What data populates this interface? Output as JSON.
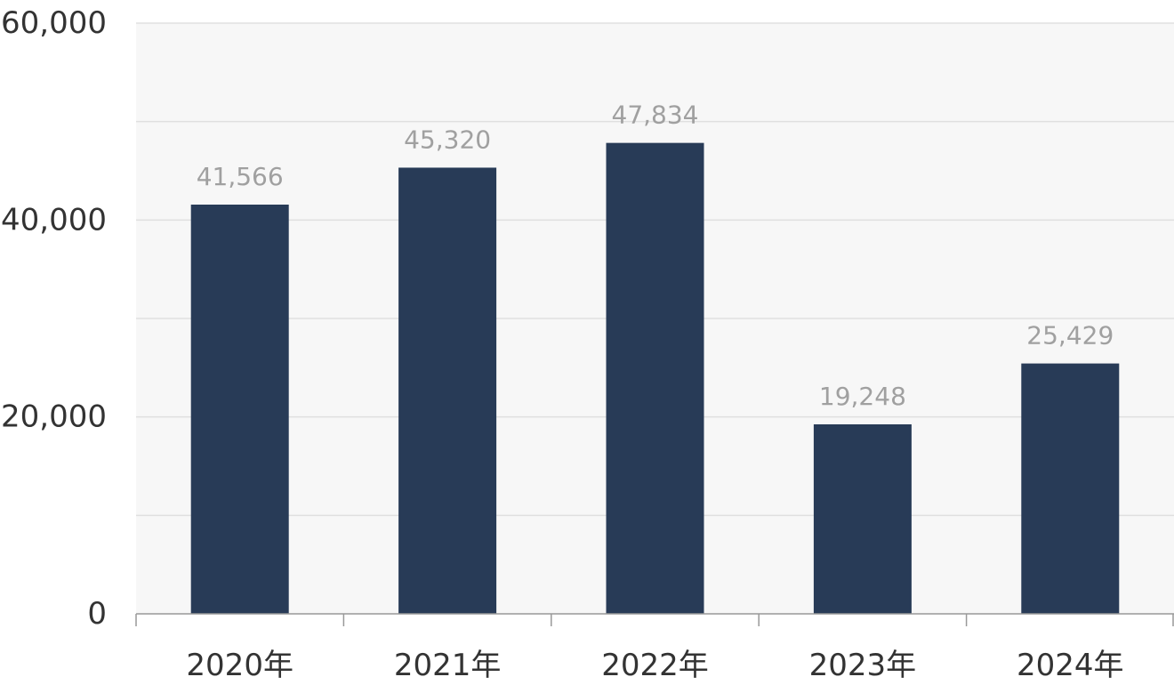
{
  "chart_data": {
    "type": "bar",
    "title": "",
    "xlabel": "",
    "ylabel": "",
    "categories": [
      "2020年",
      "2021年",
      "2022年",
      "2023年",
      "2024年"
    ],
    "series": [
      {
        "values": [
          41566,
          45320,
          47834,
          19248,
          25429
        ]
      }
    ],
    "data_labels": [
      "41,566",
      "45,320",
      "47,834",
      "19,248",
      "25,429"
    ],
    "ylim": [
      0,
      60000
    ],
    "y_ticks": [
      0,
      20000,
      40000,
      60000
    ],
    "y_tick_labels": [
      "0",
      "20,000",
      "40,000",
      "60,000"
    ],
    "minor_gridlines": [
      10000,
      30000,
      50000
    ],
    "grid": true,
    "legend": "none",
    "colors": {
      "bar": "#283b57",
      "plot_background": "#f7f7f7",
      "gridline": "#e0e0e0",
      "axis": "#999999",
      "tick_text": "#333333",
      "data_label_text": "#a0a0a0"
    }
  }
}
